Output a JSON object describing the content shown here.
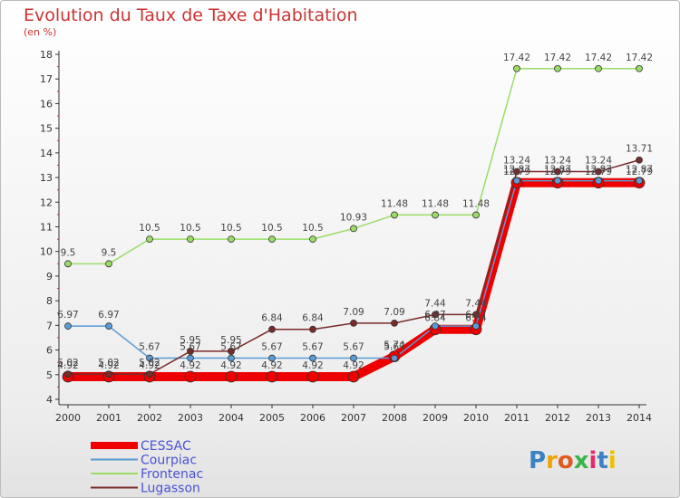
{
  "chart_data": {
    "type": "line",
    "title": "Evolution du Taux de Taxe d'Habitation",
    "subtitle": "(en %)",
    "x": [
      2000,
      2001,
      2002,
      2003,
      2004,
      2005,
      2006,
      2007,
      2008,
      2009,
      2010,
      2011,
      2012,
      2013,
      2014
    ],
    "ylim": [
      4,
      18
    ],
    "yticks": [
      4,
      5,
      6,
      7,
      8,
      9,
      10,
      11,
      12,
      13,
      14,
      15,
      16,
      17,
      18
    ],
    "grid": false,
    "legend_position": "bottom-left",
    "series": [
      {
        "name": "CESSAC",
        "color": "#ee0000",
        "values": [
          4.92,
          4.92,
          4.92,
          4.92,
          4.92,
          4.92,
          4.92,
          4.92,
          5.74,
          6.84,
          6.84,
          12.79,
          12.79,
          12.79,
          12.79
        ]
      },
      {
        "name": "Courpiac",
        "color": "#5b9bd5",
        "values": [
          6.97,
          6.97,
          5.67,
          5.67,
          5.67,
          5.67,
          5.67,
          5.67,
          5.67,
          6.97,
          6.97,
          12.87,
          12.87,
          12.87,
          12.87
        ]
      },
      {
        "name": "Frontenac",
        "color": "#99dd66",
        "values": [
          9.5,
          9.5,
          10.5,
          10.5,
          10.5,
          10.5,
          10.5,
          10.93,
          11.48,
          11.48,
          11.48,
          17.42,
          17.42,
          17.42,
          17.42
        ]
      },
      {
        "name": "Lugasson",
        "color": "#7a2a2a",
        "values": [
          5.02,
          5.02,
          5.02,
          5.95,
          5.95,
          6.84,
          6.84,
          7.09,
          7.09,
          7.44,
          7.44,
          13.24,
          13.24,
          13.24,
          13.71
        ]
      }
    ]
  },
  "brand": {
    "text": "Proxiti"
  }
}
